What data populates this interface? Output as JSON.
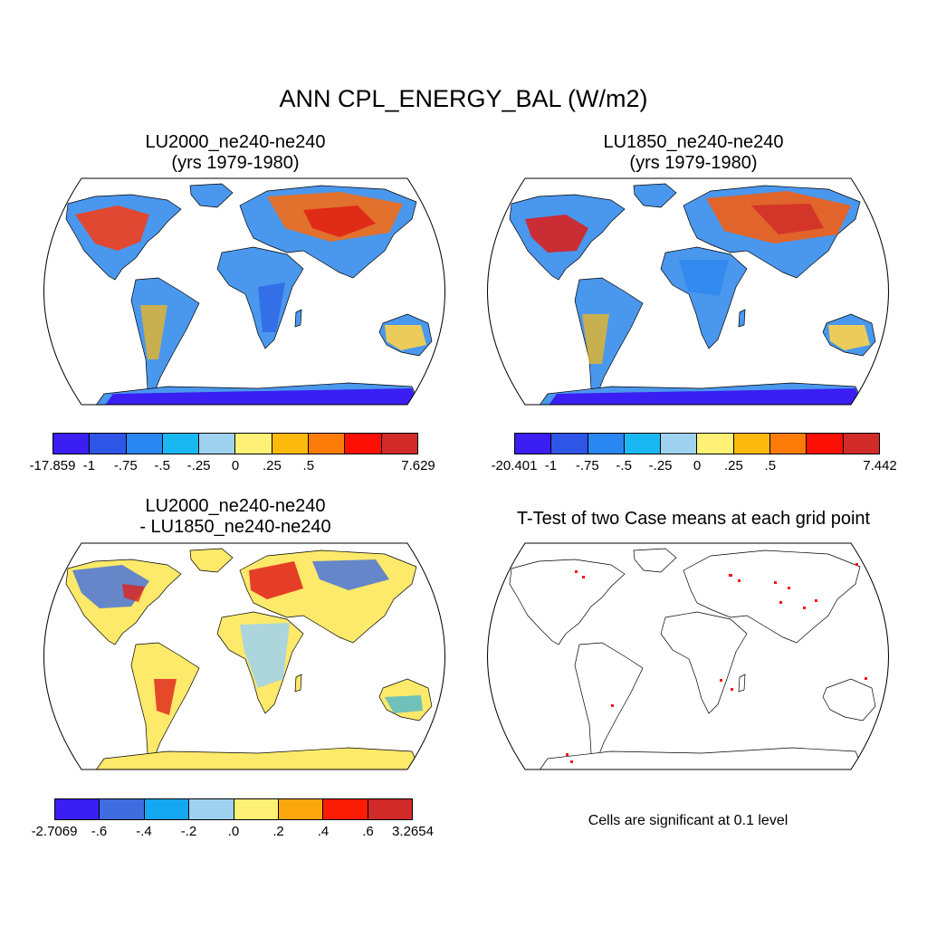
{
  "title": "ANN CPL_ENERGY_BAL (W/m2)",
  "panels": [
    {
      "title_line1": "LU2000_ne240-ne240",
      "title_line2": "(yrs 1979-1980)",
      "colorbar": {
        "colors": [
          "#3a1ef2",
          "#2f55e6",
          "#2a86f0",
          "#1ab8f3",
          "#9ed2ee",
          "#fff176",
          "#fdb90c",
          "#fc7b09",
          "#fc0f04",
          "#d02a29"
        ],
        "labels": [
          "-17.859",
          "-1",
          "-.75",
          "-.5",
          "-.25",
          "0",
          ".25",
          ".5",
          "7.629"
        ]
      }
    },
    {
      "title_line1": "LU1850_ne240-ne240",
      "title_line2": "(yrs 1979-1980)",
      "colorbar": {
        "colors": [
          "#3a1ef2",
          "#2f55e6",
          "#2a86f0",
          "#1ab8f3",
          "#9ed2ee",
          "#fff176",
          "#fdb90c",
          "#fc7b09",
          "#fc0f04",
          "#d02a29"
        ],
        "labels": [
          "-20.401",
          "-1",
          "-.75",
          "-.5",
          "-.25",
          "0",
          ".25",
          ".5",
          "7.442"
        ]
      }
    },
    {
      "title_line1": "LU2000_ne240-ne240",
      "title_line2": "- LU1850_ne240-ne240",
      "colorbar": {
        "colors": [
          "#3a1ef2",
          "#3f6de0",
          "#14a7f2",
          "#9ed2ee",
          "#fff176",
          "#fca70d",
          "#fc1c05",
          "#d02a29"
        ],
        "labels": [
          "-2.7069",
          "-.6",
          "-.4",
          "-.2",
          ".0",
          ".2",
          ".4",
          ".6",
          "3.2654"
        ]
      }
    },
    {
      "title_line1": "T-Test of two Case means at each grid point",
      "note": "Cells are significant at 0.1 level"
    }
  ]
}
